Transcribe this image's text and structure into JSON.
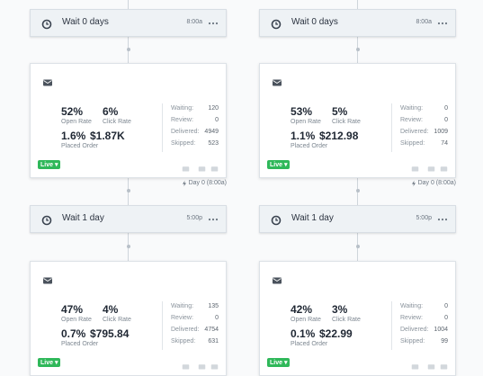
{
  "columns": [
    {
      "wait1": {
        "label": "Wait 0 days",
        "time": "8:00a"
      },
      "email1": {
        "open_rate": "52%",
        "open_label": "Open Rate",
        "click_rate": "6%",
        "click_label": "Click Rate",
        "order_rate": "1.6%",
        "revenue": "$1.87K",
        "order_label": "Placed Order",
        "stats": [
          {
            "label": "Waiting:",
            "value": "120"
          },
          {
            "label": "Review:",
            "value": "0"
          },
          {
            "label": "Delivered:",
            "value": "4949"
          },
          {
            "label": "Skipped:",
            "value": "523"
          }
        ],
        "status": "Live"
      },
      "day_label": "Day 0 (8:00a)",
      "wait2": {
        "label": "Wait 1 day",
        "time": "5:00p"
      },
      "email2": {
        "open_rate": "47%",
        "open_label": "Open Rate",
        "click_rate": "4%",
        "click_label": "Click Rate",
        "order_rate": "0.7%",
        "revenue": "$795.84",
        "order_label": "Placed Order",
        "stats": [
          {
            "label": "Waiting:",
            "value": "135"
          },
          {
            "label": "Review:",
            "value": "0"
          },
          {
            "label": "Delivered:",
            "value": "4754"
          },
          {
            "label": "Skipped:",
            "value": "631"
          }
        ],
        "status": "Live"
      }
    },
    {
      "wait1": {
        "label": "Wait 0 days",
        "time": "8:00a"
      },
      "email1": {
        "open_rate": "53%",
        "open_label": "Open Rate",
        "click_rate": "5%",
        "click_label": "Click Rate",
        "order_rate": "1.1%",
        "revenue": "$212.98",
        "order_label": "Placed Order",
        "stats": [
          {
            "label": "Waiting:",
            "value": "0"
          },
          {
            "label": "Review:",
            "value": "0"
          },
          {
            "label": "Delivered:",
            "value": "1009"
          },
          {
            "label": "Skipped:",
            "value": "74"
          }
        ],
        "status": "Live"
      },
      "day_label": "Day 0 (8:00a)",
      "wait2": {
        "label": "Wait 1 day",
        "time": "5:00p"
      },
      "email2": {
        "open_rate": "42%",
        "open_label": "Open Rate",
        "click_rate": "3%",
        "click_label": "Click Rate",
        "order_rate": "0.1%",
        "revenue": "$22.99",
        "order_label": "Placed Order",
        "stats": [
          {
            "label": "Waiting:",
            "value": "0"
          },
          {
            "label": "Review:",
            "value": "0"
          },
          {
            "label": "Delivered:",
            "value": "1004"
          },
          {
            "label": "Skipped:",
            "value": "99"
          }
        ],
        "status": "Live"
      }
    }
  ]
}
